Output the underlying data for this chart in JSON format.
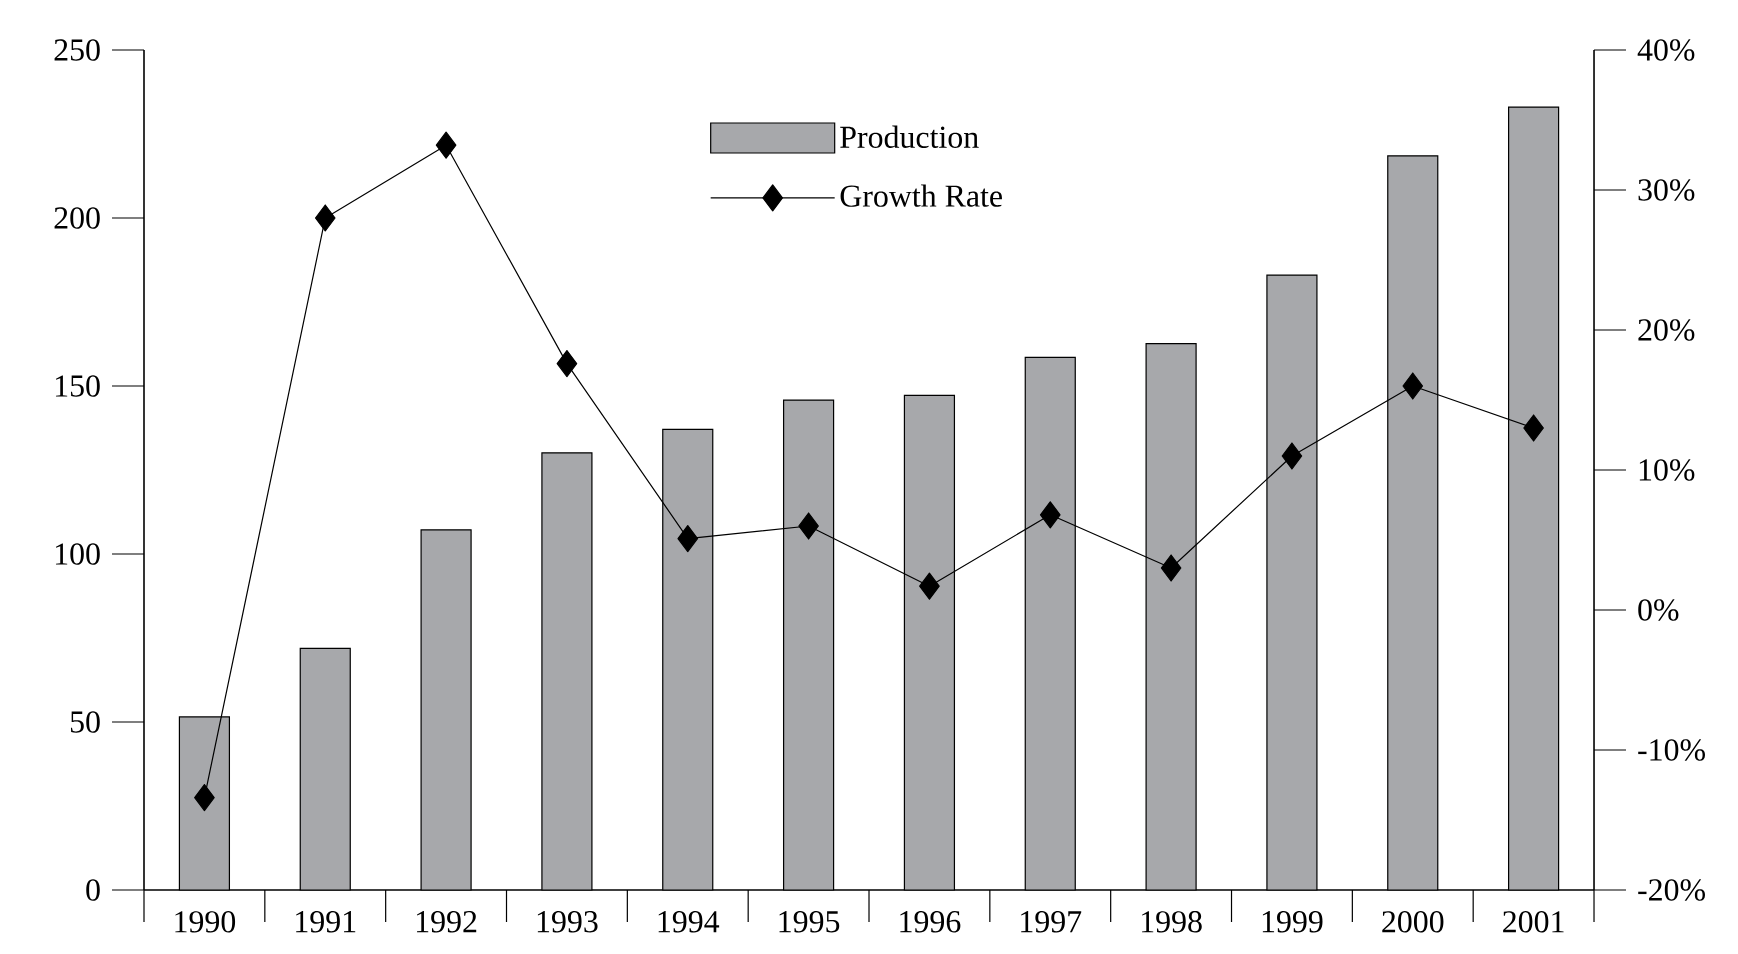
{
  "chart_data": {
    "type": "bar",
    "categories": [
      "1990",
      "1991",
      "1992",
      "1993",
      "1994",
      "1995",
      "1996",
      "1997",
      "1998",
      "1999",
      "2000",
      "2001"
    ],
    "series": [
      {
        "name": "Production",
        "color": "#a7a8ab",
        "values": [
          51.5,
          71.9,
          107.2,
          130.1,
          137.1,
          145.8,
          147.2,
          158.5,
          162.6,
          183.0,
          218.5,
          233.0
        ]
      },
      {
        "name": "Growth Rate",
        "type": "line",
        "axis": "y2",
        "marker": "diamond",
        "color": "#000000",
        "values": [
          -13.4,
          28.0,
          33.2,
          17.6,
          5.1,
          6.0,
          1.7,
          6.8,
          3.0,
          11.0,
          16.0,
          13.0
        ]
      }
    ],
    "ylim": [
      0,
      250
    ],
    "yticks": [
      0,
      50,
      100,
      150,
      200,
      250
    ],
    "y2lim": [
      -20,
      40
    ],
    "y2ticks": [
      {
        "value": -20,
        "label": "-20%"
      },
      {
        "value": -10,
        "label": "-10%"
      },
      {
        "value": 0,
        "label": "0%"
      },
      {
        "value": 10,
        "label": "10%"
      },
      {
        "value": 20,
        "label": "20%"
      },
      {
        "value": 30,
        "label": "30%"
      },
      {
        "value": 40,
        "label": "40%"
      }
    ],
    "legend": "top",
    "grid": false
  }
}
